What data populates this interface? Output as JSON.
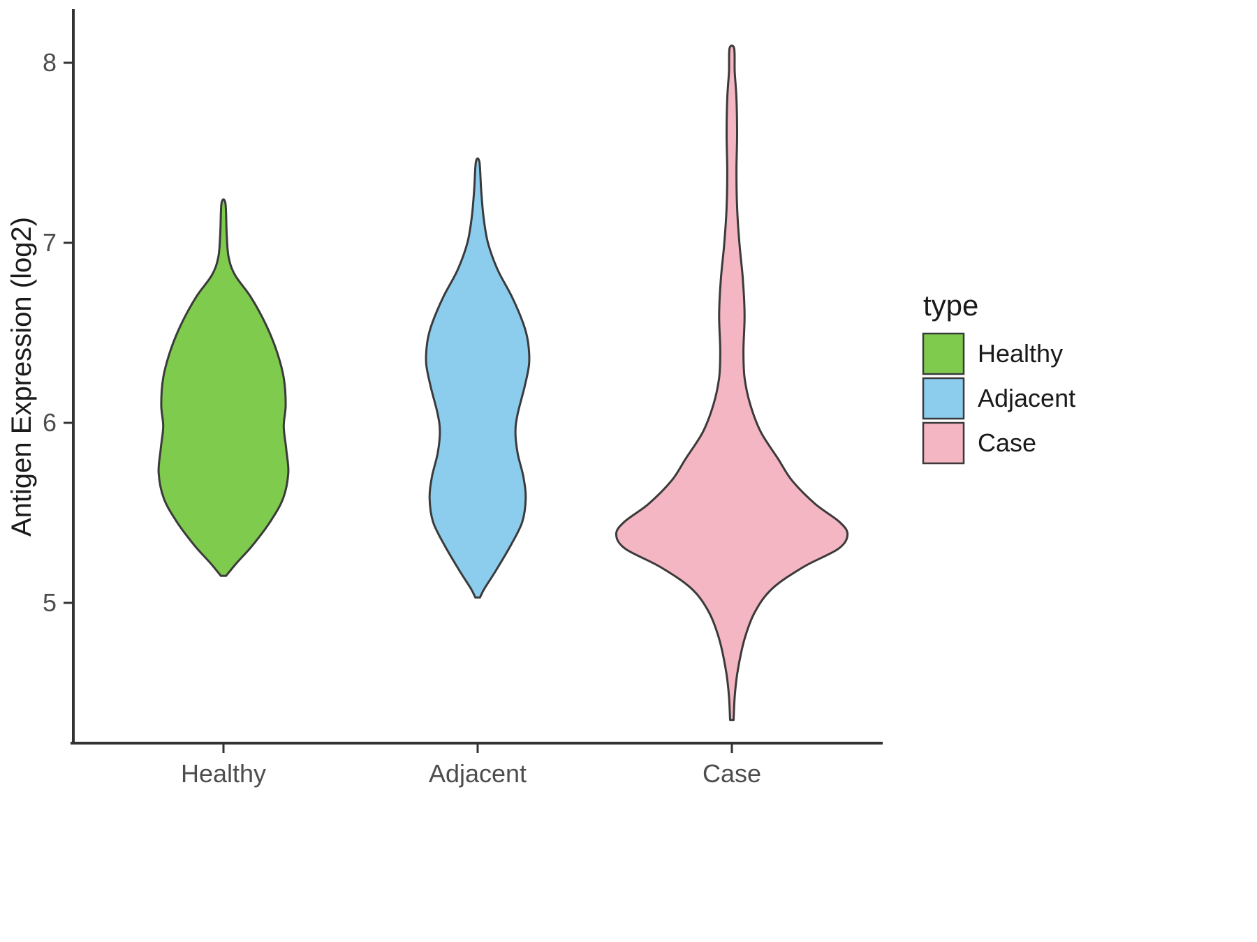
{
  "chart_data": {
    "type": "violin",
    "title": "",
    "xlabel": "",
    "ylabel": "Antigen Expression (log2)",
    "categories": [
      "Healthy",
      "Adjacent",
      "Case"
    ],
    "y_ticks": [
      5,
      6,
      7,
      8
    ],
    "ylim": [
      4.2,
      8.3
    ],
    "grid": false,
    "legend": {
      "title": "type",
      "position": "right",
      "items": [
        {
          "label": "Healthy",
          "color": "#7FCB4E"
        },
        {
          "label": "Adjacent",
          "color": "#8CCDEE"
        },
        {
          "label": "Case",
          "color": "#F4B6C2"
        }
      ]
    },
    "style": {
      "violin_stroke": "#3A3A3A",
      "violin_stroke_width": 3,
      "axis_color": "#333333",
      "tick_label_color": "#4D4D4D",
      "text_color": "#1A1A1A",
      "background": "#FFFFFF"
    },
    "series": [
      {
        "name": "Healthy",
        "color": "#7FCB4E",
        "y_min": 5.15,
        "y_max": 7.22,
        "max_halfwidth_frac": 0.255,
        "profile": [
          [
            7.22,
            0.03
          ],
          [
            7.05,
            0.05
          ],
          [
            6.92,
            0.08
          ],
          [
            6.82,
            0.18
          ],
          [
            6.7,
            0.42
          ],
          [
            6.55,
            0.65
          ],
          [
            6.4,
            0.82
          ],
          [
            6.25,
            0.93
          ],
          [
            6.1,
            0.96
          ],
          [
            5.98,
            0.93
          ],
          [
            5.85,
            0.97
          ],
          [
            5.72,
            1.0
          ],
          [
            5.58,
            0.92
          ],
          [
            5.45,
            0.72
          ],
          [
            5.32,
            0.45
          ],
          [
            5.22,
            0.2
          ],
          [
            5.15,
            0.04
          ]
        ]
      },
      {
        "name": "Adjacent",
        "color": "#8CCDEE",
        "y_min": 5.03,
        "y_max": 7.45,
        "max_halfwidth_frac": 0.225,
        "profile": [
          [
            7.45,
            0.03
          ],
          [
            7.3,
            0.06
          ],
          [
            7.15,
            0.1
          ],
          [
            7.0,
            0.18
          ],
          [
            6.85,
            0.35
          ],
          [
            6.7,
            0.6
          ],
          [
            6.55,
            0.8
          ],
          [
            6.45,
            0.88
          ],
          [
            6.33,
            0.9
          ],
          [
            6.2,
            0.82
          ],
          [
            6.05,
            0.7
          ],
          [
            5.95,
            0.66
          ],
          [
            5.83,
            0.7
          ],
          [
            5.7,
            0.8
          ],
          [
            5.58,
            0.84
          ],
          [
            5.45,
            0.78
          ],
          [
            5.32,
            0.58
          ],
          [
            5.18,
            0.32
          ],
          [
            5.08,
            0.12
          ],
          [
            5.03,
            0.04
          ]
        ]
      },
      {
        "name": "Case",
        "color": "#F4B6C2",
        "y_min": 4.35,
        "y_max": 8.08,
        "max_halfwidth_frac": 0.455,
        "profile": [
          [
            8.08,
            0.02
          ],
          [
            7.95,
            0.025
          ],
          [
            7.8,
            0.04
          ],
          [
            7.6,
            0.045
          ],
          [
            7.4,
            0.04
          ],
          [
            7.2,
            0.045
          ],
          [
            7.0,
            0.065
          ],
          [
            6.8,
            0.095
          ],
          [
            6.6,
            0.11
          ],
          [
            6.4,
            0.1
          ],
          [
            6.25,
            0.11
          ],
          [
            6.1,
            0.16
          ],
          [
            5.95,
            0.25
          ],
          [
            5.8,
            0.4
          ],
          [
            5.68,
            0.52
          ],
          [
            5.55,
            0.72
          ],
          [
            5.45,
            0.93
          ],
          [
            5.38,
            1.0
          ],
          [
            5.3,
            0.92
          ],
          [
            5.2,
            0.62
          ],
          [
            5.08,
            0.35
          ],
          [
            4.95,
            0.2
          ],
          [
            4.8,
            0.11
          ],
          [
            4.62,
            0.05
          ],
          [
            4.48,
            0.025
          ],
          [
            4.35,
            0.015
          ]
        ]
      }
    ]
  }
}
